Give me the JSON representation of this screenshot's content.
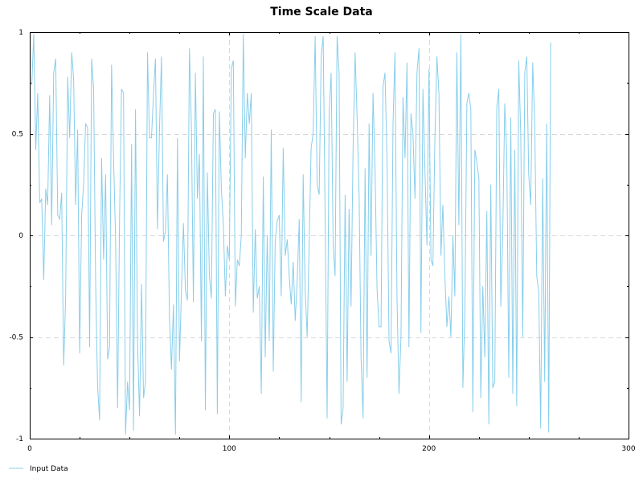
{
  "chart_data": {
    "type": "line",
    "title": "Time Scale Data",
    "xlabel": "",
    "ylabel": "",
    "xlim": [
      0,
      300
    ],
    "ylim": [
      -1,
      1
    ],
    "x_ticks": [
      0,
      100,
      200,
      300
    ],
    "y_ticks": [
      -1,
      -0.5,
      0,
      0.5,
      1
    ],
    "x_tick_labels": [
      "0",
      "100",
      "200",
      "300"
    ],
    "y_tick_labels": [
      "-1",
      "-0.5",
      "0",
      "0.5",
      "1"
    ],
    "grid": true,
    "legend_position": "bottom-left",
    "series": [
      {
        "name": "Input Data",
        "color": "#87ceeb",
        "x_start": 1,
        "x_step": 1,
        "values": [
          0.74,
          0.99,
          0.42,
          0.7,
          0.16,
          0.18,
          -0.22,
          0.23,
          0.15,
          0.69,
          0.05,
          0.8,
          0.87,
          0.1,
          0.08,
          0.21,
          -0.64,
          -0.3,
          0.78,
          0.48,
          0.9,
          0.77,
          0.15,
          0.52,
          -0.58,
          0.1,
          0.25,
          0.55,
          0.53,
          -0.55,
          0.87,
          0.72,
          -0.24,
          -0.74,
          -0.91,
          0.38,
          -0.12,
          0.3,
          -0.61,
          -0.55,
          0.84,
          0.38,
          -0.02,
          -0.85,
          0.1,
          0.72,
          0.7,
          -0.98,
          -0.72,
          -0.86,
          0.45,
          -0.96,
          0.62,
          -0.52,
          -0.89,
          -0.24,
          -0.8,
          -0.72,
          0.9,
          0.48,
          0.48,
          0.7,
          0.87,
          0.03,
          0.52,
          0.88,
          -0.03,
          0.02,
          0.3,
          -0.4,
          -0.66,
          -0.34,
          -0.98,
          0.48,
          -0.62,
          -0.28,
          0.06,
          -0.27,
          -0.32,
          0.92,
          0.52,
          -0.33,
          0.8,
          0.18,
          0.4,
          -0.52,
          0.88,
          -0.86,
          0.31,
          -0.2,
          -0.31,
          0.6,
          0.62,
          -0.88,
          0.61,
          0.23,
          0.05,
          -0.3,
          -0.05,
          -0.12,
          0.82,
          0.86,
          -0.35,
          -0.12,
          -0.15,
          0.0,
          0.99,
          0.38,
          0.7,
          0.55,
          0.7,
          -0.38,
          0.03,
          -0.31,
          -0.25,
          -0.78,
          0.29,
          -0.6,
          0.0,
          -0.52,
          0.52,
          -0.67,
          -0.03,
          0.07,
          0.1,
          -0.3,
          0.43,
          -0.1,
          -0.02,
          -0.2,
          -0.34,
          -0.13,
          -0.42,
          -0.22,
          0.08,
          -0.82,
          0.3,
          -0.27,
          -0.5,
          -0.03,
          0.43,
          0.5,
          0.98,
          0.25,
          0.2,
          0.88,
          0.98,
          0.1,
          -0.9,
          0.6,
          0.8,
          -0.05,
          -0.2,
          0.98,
          0.8,
          -0.93,
          -0.85,
          0.2,
          -0.72,
          0.13,
          -0.35,
          0.43,
          0.9,
          0.58,
          0.2,
          -0.6,
          -0.9,
          0.33,
          -0.7,
          0.55,
          -0.1,
          0.7,
          0.33,
          -0.26,
          -0.45,
          -0.45,
          0.73,
          0.8,
          0.38,
          -0.52,
          -0.58,
          0.55,
          0.9,
          -0.3,
          -0.78,
          -0.5,
          0.68,
          0.38,
          0.85,
          -0.55,
          0.6,
          0.5,
          0.18,
          0.8,
          0.92,
          -0.48,
          0.72,
          0.32,
          -0.05,
          0.82,
          -0.12,
          -0.15,
          0.48,
          0.88,
          0.7,
          -0.1,
          0.15,
          -0.2,
          -0.45,
          -0.3,
          -0.5,
          0.0,
          -0.3,
          0.9,
          0.05,
          0.99,
          -0.75,
          -0.38,
          0.65,
          0.7,
          0.62,
          -0.87,
          0.42,
          0.36,
          0.28,
          -0.8,
          -0.25,
          -0.6,
          0.12,
          -0.93,
          0.25,
          -0.75,
          -0.72,
          0.63,
          0.72,
          -0.35,
          0.02,
          0.65,
          0.4,
          -0.7,
          0.58,
          -0.78,
          0.42,
          -0.84,
          0.86,
          0.5,
          -0.5,
          0.8,
          0.88,
          0.3,
          0.15,
          0.85,
          0.55,
          -0.2,
          -0.28,
          -0.95,
          0.28,
          -0.72,
          0.55,
          -0.97,
          0.95
        ]
      }
    ]
  }
}
